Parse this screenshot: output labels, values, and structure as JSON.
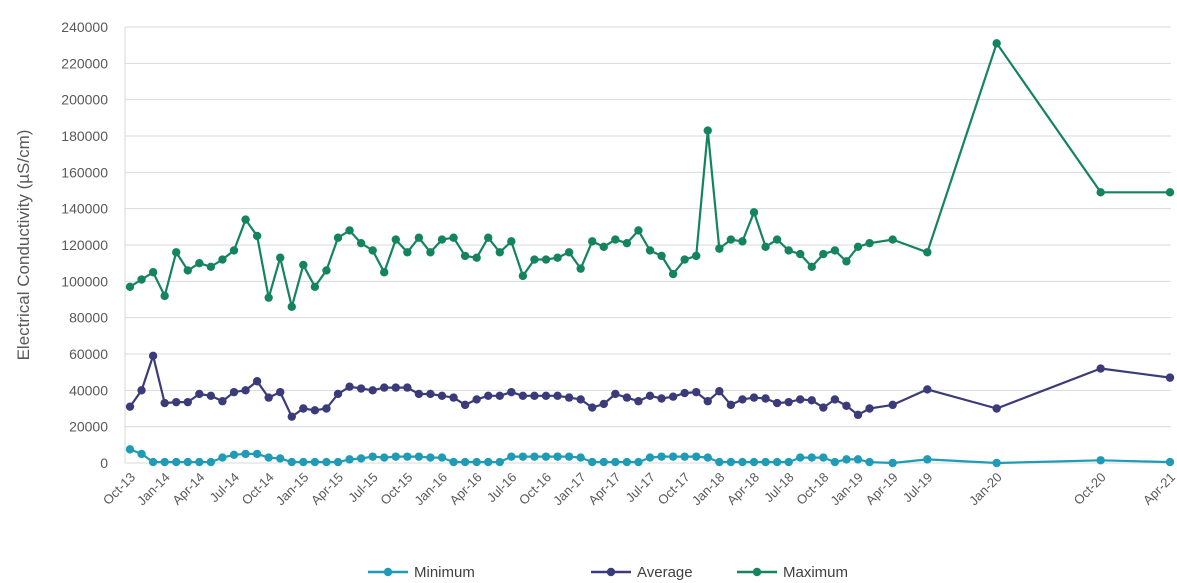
{
  "chart_data": {
    "type": "line",
    "ylabel": "Electrical Conductivity (µS/cm)",
    "xlabel": "",
    "ylim": [
      0,
      240000
    ],
    "y_ticks": [
      "0",
      "20000",
      "40000",
      "60000",
      "80000",
      "100000",
      "120000",
      "140000",
      "160000",
      "180000",
      "200000",
      "220000",
      "240000"
    ],
    "y_tick_values": [
      0,
      20000,
      40000,
      60000,
      80000,
      100000,
      120000,
      140000,
      160000,
      180000,
      200000,
      220000,
      240000
    ],
    "x_ticks": [
      "Oct-13",
      "Jan-14",
      "Apr-14",
      "Jul-14",
      "Oct-14",
      "Jan-15",
      "Apr-15",
      "Jul-15",
      "Oct-15",
      "Jan-16",
      "Apr-16",
      "Jul-16",
      "Oct-16",
      "Jan-17",
      "Apr-17",
      "Jul-17",
      "Oct-17",
      "Jan-18",
      "Apr-18",
      "Jul-18",
      "Oct-18",
      "Jan-19",
      "Apr-19",
      "Jul-19",
      "Jan-20",
      "Oct-20",
      "Apr-21"
    ],
    "x_tick_dates": [
      "2013-10",
      "2014-01",
      "2014-04",
      "2014-07",
      "2014-10",
      "2015-01",
      "2015-04",
      "2015-07",
      "2015-10",
      "2016-01",
      "2016-04",
      "2016-07",
      "2016-10",
      "2017-01",
      "2017-04",
      "2017-07",
      "2017-10",
      "2018-01",
      "2018-04",
      "2018-07",
      "2018-10",
      "2019-01",
      "2019-04",
      "2019-07",
      "2020-01",
      "2020-10",
      "2021-04"
    ],
    "x": [
      "2013-10",
      "2013-11",
      "2013-12",
      "2014-01",
      "2014-02",
      "2014-03",
      "2014-04",
      "2014-05",
      "2014-06",
      "2014-07",
      "2014-08",
      "2014-09",
      "2014-10",
      "2014-11",
      "2014-12",
      "2015-01",
      "2015-02",
      "2015-03",
      "2015-04",
      "2015-05",
      "2015-06",
      "2015-07",
      "2015-08",
      "2015-09",
      "2015-10",
      "2015-11",
      "2015-12",
      "2016-01",
      "2016-02",
      "2016-03",
      "2016-04",
      "2016-05",
      "2016-06",
      "2016-07",
      "2016-08",
      "2016-09",
      "2016-10",
      "2016-11",
      "2016-12",
      "2017-01",
      "2017-02",
      "2017-03",
      "2017-04",
      "2017-05",
      "2017-06",
      "2017-07",
      "2017-08",
      "2017-09",
      "2017-10",
      "2017-11",
      "2017-12",
      "2018-01",
      "2018-02",
      "2018-03",
      "2018-04",
      "2018-05",
      "2018-06",
      "2018-07",
      "2018-08",
      "2018-09",
      "2018-10",
      "2018-11",
      "2018-12",
      "2019-01",
      "2019-02",
      "2019-04",
      "2019-07",
      "2020-01",
      "2020-10",
      "2021-04"
    ],
    "series": [
      {
        "name": "Minimum",
        "color": "#1f9bb5",
        "values": [
          7500,
          5000,
          500,
          500,
          500,
          500,
          500,
          500,
          3000,
          4500,
          5000,
          5000,
          3000,
          2500,
          500,
          500,
          500,
          500,
          500,
          2000,
          2500,
          3500,
          3000,
          3500,
          3500,
          3500,
          3000,
          3000,
          500,
          500,
          500,
          500,
          500,
          3500,
          3500,
          3500,
          3500,
          3500,
          3500,
          3000,
          500,
          500,
          500,
          500,
          500,
          3000,
          3500,
          3500,
          3500,
          3500,
          3000,
          500,
          500,
          500,
          500,
          500,
          500,
          500,
          3000,
          3000,
          3000,
          500,
          2000,
          2000,
          500,
          0,
          2000,
          0,
          1500,
          500
        ]
      },
      {
        "name": "Average",
        "color": "#3c3b7a",
        "values": [
          31000,
          40000,
          59000,
          33000,
          33500,
          33500,
          38000,
          37000,
          34000,
          39000,
          40000,
          45000,
          36000,
          39000,
          25500,
          30000,
          29000,
          30000,
          38000,
          42000,
          41000,
          40000,
          41500,
          41500,
          41500,
          38000,
          38000,
          37000,
          36000,
          32000,
          35000,
          37000,
          37000,
          39000,
          37000,
          37000,
          37000,
          37000,
          36000,
          35000,
          30500,
          32500,
          38000,
          36000,
          34000,
          37000,
          35500,
          36500,
          38500,
          39000,
          34000,
          39500,
          32000,
          35000,
          36000,
          35500,
          33000,
          33500,
          35000,
          34500,
          30500,
          35000,
          31500,
          26500,
          30000,
          32000,
          40500,
          30000,
          52000,
          47000
        ]
      },
      {
        "name": "Maximum",
        "color": "#14845e",
        "values": [
          97000,
          101000,
          105000,
          92000,
          116000,
          106000,
          110000,
          108000,
          112000,
          117000,
          134000,
          125000,
          91000,
          113000,
          86000,
          109000,
          97000,
          106000,
          124000,
          128000,
          121000,
          117000,
          105000,
          123000,
          116000,
          124000,
          116000,
          123000,
          124000,
          114000,
          113000,
          124000,
          116000,
          122000,
          103000,
          112000,
          112000,
          113000,
          116000,
          107000,
          122000,
          119000,
          123000,
          121000,
          128000,
          117000,
          114000,
          104000,
          112000,
          114000,
          183000,
          118000,
          123000,
          122000,
          138000,
          119000,
          123000,
          117000,
          115000,
          108000,
          115000,
          117000,
          111000,
          119000,
          121000,
          123000,
          116000,
          231000,
          149000,
          149000
        ]
      }
    ],
    "legend": {
      "position": "bottom",
      "entries": [
        "Minimum",
        "Average",
        "Maximum"
      ]
    },
    "grid": true
  }
}
